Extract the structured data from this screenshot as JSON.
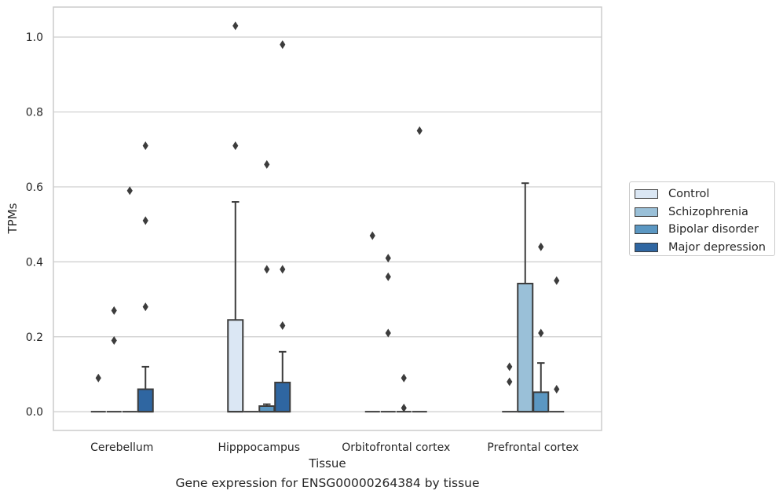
{
  "caption": "Gene expression for ENSG00000264384 by tissue",
  "legend": {
    "items": [
      {
        "label": "Control",
        "color": "#dbe7f4"
      },
      {
        "label": "Schizophrenia",
        "color": "#9ac0d8"
      },
      {
        "label": "Bipolar disorder",
        "color": "#5b97c2"
      },
      {
        "label": "Major depression",
        "color": "#2f66a1"
      }
    ]
  },
  "chart_data": {
    "type": "box",
    "xlabel": "Tissue",
    "ylabel": "TPMs",
    "ylim": [
      -0.05,
      1.08
    ],
    "yticks": [
      "0.0",
      "0.2",
      "0.4",
      "0.6",
      "0.8",
      "1.0"
    ],
    "grid": "horizontal",
    "legend_position": "right",
    "categories": [
      "Cerebellum",
      "Hipppocampus",
      "Orbitofrontal cortex",
      "Prefrontal cortex"
    ],
    "series": [
      {
        "name": "Control",
        "color": "#dbe7f4",
        "boxes": [
          {
            "q1": 0,
            "median": 0,
            "q3": 0,
            "whisker_low": 0,
            "whisker_high": 0,
            "outliers": [
              0.09
            ]
          },
          {
            "q1": 0,
            "median": 0,
            "q3": 0.245,
            "whisker_low": 0,
            "whisker_high": 0.56,
            "outliers": [
              0.71,
              1.03
            ]
          },
          {
            "q1": 0,
            "median": 0,
            "q3": 0,
            "whisker_low": 0,
            "whisker_high": 0,
            "outliers": [
              0.47
            ]
          },
          {
            "q1": 0,
            "median": 0,
            "q3": 0,
            "whisker_low": 0,
            "whisker_high": 0,
            "outliers": [
              0.08,
              0.12
            ]
          }
        ]
      },
      {
        "name": "Schizophrenia",
        "color": "#9ac0d8",
        "boxes": [
          {
            "q1": 0,
            "median": 0,
            "q3": 0,
            "whisker_low": 0,
            "whisker_high": 0,
            "outliers": [
              0.19,
              0.27
            ]
          },
          {
            "q1": 0,
            "median": 0,
            "q3": 0,
            "whisker_low": 0,
            "whisker_high": 0,
            "outliers": []
          },
          {
            "q1": 0,
            "median": 0,
            "q3": 0,
            "whisker_low": 0,
            "whisker_high": 0,
            "outliers": [
              0.21,
              0.36,
              0.41
            ]
          },
          {
            "q1": 0,
            "median": 0,
            "q3": 0.342,
            "whisker_low": 0,
            "whisker_high": 0.61,
            "outliers": []
          }
        ]
      },
      {
        "name": "Bipolar disorder",
        "color": "#5b97c2",
        "boxes": [
          {
            "q1": 0,
            "median": 0,
            "q3": 0,
            "whisker_low": 0,
            "whisker_high": 0,
            "outliers": [
              0.59
            ]
          },
          {
            "q1": 0,
            "median": 0,
            "q3": 0.015,
            "whisker_low": 0,
            "whisker_high": 0.02,
            "outliers": [
              0.38,
              0.66
            ]
          },
          {
            "q1": 0,
            "median": 0,
            "q3": 0,
            "whisker_low": 0,
            "whisker_high": 0,
            "outliers": [
              0.01,
              0.09
            ]
          },
          {
            "q1": 0,
            "median": 0,
            "q3": 0.052,
            "whisker_low": 0,
            "whisker_high": 0.13,
            "outliers": [
              0.21,
              0.44
            ]
          }
        ]
      },
      {
        "name": "Major depression",
        "color": "#2f66a1",
        "boxes": [
          {
            "q1": 0,
            "median": 0,
            "q3": 0.06,
            "whisker_low": 0,
            "whisker_high": 0.12,
            "outliers": [
              0.28,
              0.51,
              0.71
            ]
          },
          {
            "q1": 0,
            "median": 0,
            "q3": 0.078,
            "whisker_low": 0,
            "whisker_high": 0.16,
            "outliers": [
              0.23,
              0.38,
              0.98
            ]
          },
          {
            "q1": 0,
            "median": 0,
            "q3": 0,
            "whisker_low": 0,
            "whisker_high": 0,
            "outliers": [
              0.75
            ]
          },
          {
            "q1": 0,
            "median": 0,
            "q3": 0,
            "whisker_low": 0,
            "whisker_high": 0,
            "outliers": [
              0.06,
              0.35
            ]
          }
        ]
      }
    ]
  }
}
